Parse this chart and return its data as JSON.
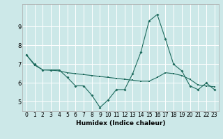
{
  "xlabel": "Humidex (Indice chaleur)",
  "ylabel": "",
  "background_color": "#cce8e8",
  "grid_color": "#ffffff",
  "line_color": "#1e6b5e",
  "x_values": [
    0,
    1,
    2,
    3,
    4,
    5,
    6,
    7,
    8,
    9,
    10,
    11,
    12,
    13,
    14,
    15,
    16,
    17,
    18,
    19,
    20,
    21,
    22,
    23
  ],
  "line1_y": [
    7.5,
    7.0,
    6.7,
    6.7,
    6.7,
    6.3,
    5.85,
    5.85,
    5.35,
    4.7,
    5.1,
    5.65,
    5.65,
    6.5,
    7.65,
    9.3,
    9.65,
    8.35,
    7.0,
    6.65,
    5.85,
    5.65,
    6.0,
    5.65
  ],
  "line2_y": [
    7.5,
    6.95,
    6.7,
    6.68,
    6.65,
    6.55,
    6.5,
    6.45,
    6.4,
    6.35,
    6.3,
    6.25,
    6.2,
    6.15,
    6.1,
    6.1,
    6.3,
    6.55,
    6.5,
    6.4,
    6.2,
    5.9,
    5.85,
    5.8
  ],
  "ylim": [
    4.5,
    10.2
  ],
  "xlim": [
    -0.5,
    23.5
  ],
  "yticks": [
    5,
    6,
    7,
    8,
    9
  ],
  "xticks": [
    0,
    1,
    2,
    3,
    4,
    5,
    6,
    7,
    8,
    9,
    10,
    11,
    12,
    13,
    14,
    15,
    16,
    17,
    18,
    19,
    20,
    21,
    22,
    23
  ],
  "marker1": "D",
  "marker2": "s",
  "markersize1": 2.0,
  "markersize2": 1.8,
  "linewidth": 0.8,
  "tick_fontsize": 5.5,
  "xlabel_fontsize": 6.5
}
